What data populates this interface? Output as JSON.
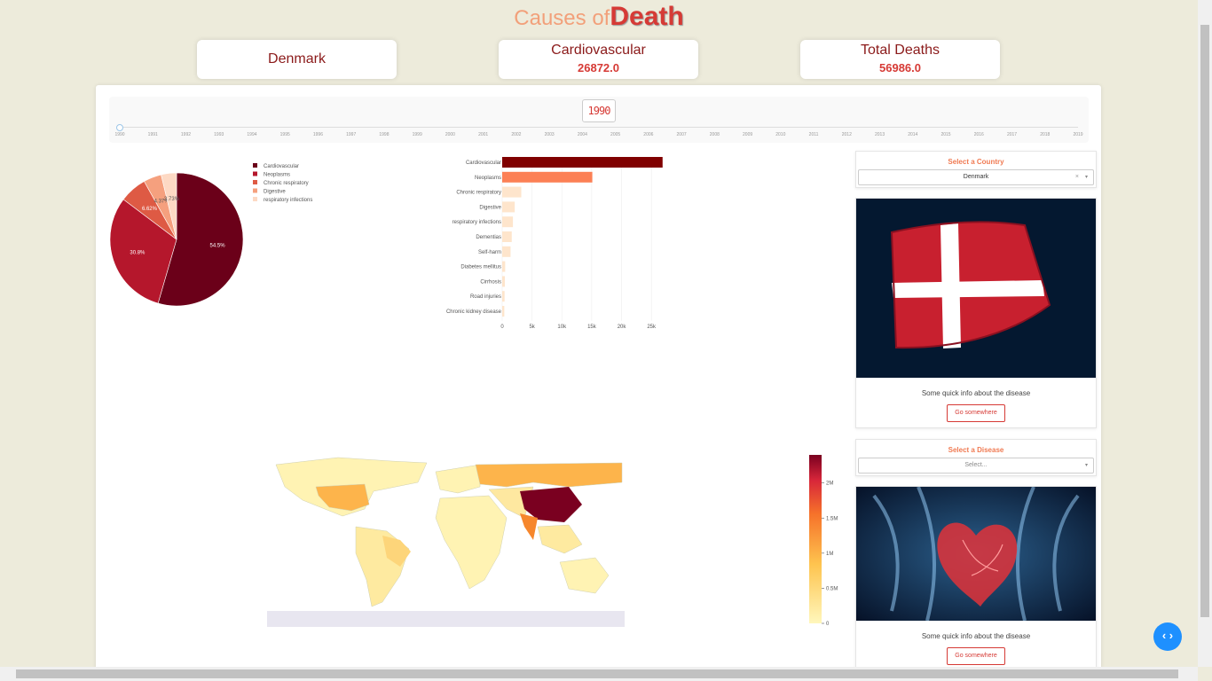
{
  "title": {
    "part1": "Causes of",
    "part2": "Death"
  },
  "cards": {
    "country": "Denmark",
    "disease_label": "Cardiovascular",
    "disease_value": "26872.0",
    "total_label": "Total Deaths",
    "total_value": "56986.0"
  },
  "slider": {
    "current": "1990",
    "years": [
      "1990",
      "1991",
      "1992",
      "1993",
      "1994",
      "1995",
      "1996",
      "1997",
      "1998",
      "1999",
      "2000",
      "2001",
      "2002",
      "2003",
      "2004",
      "2005",
      "2006",
      "2007",
      "2008",
      "2009",
      "2010",
      "2011",
      "2012",
      "2013",
      "2014",
      "2015",
      "2016",
      "2017",
      "2018",
      "2019"
    ]
  },
  "country_select": {
    "label": "Select a Country",
    "value": "Denmark",
    "clear": "×",
    "arrow": "▾"
  },
  "disease_select": {
    "label": "Select a Disease",
    "placeholder": "Select...",
    "arrow": "▾"
  },
  "flag_card": {
    "info": "Some quick info about the disease",
    "button": "Go somewhere"
  },
  "disease_card": {
    "info": "Some quick info about the disease",
    "button": "Go somewhere"
  },
  "fab": {
    "icon": "code-icon",
    "glyph": "‹ ›"
  },
  "chart_data": [
    {
      "type": "pie",
      "labels": [
        "Cardiovascular",
        "Neoplasms",
        "Chronic respiratory",
        "Digestive",
        "respiratory infections"
      ],
      "values": [
        54.5,
        30.8,
        6.62,
        4.37,
        3.73
      ],
      "slice_labels": [
        "54.5%",
        "30.8%",
        "6.62%",
        "4.37%",
        "3.73%"
      ],
      "colors": [
        "#6b0019",
        "#b5172c",
        "#de5a44",
        "#f5a07e",
        "#fdd9c4"
      ],
      "legend": "right"
    },
    {
      "type": "bar",
      "orientation": "horizontal",
      "categories": [
        "Cardiovascular",
        "Neoplasms",
        "Chronic respiratory",
        "Digestive",
        "respiratory infections",
        "Dementias",
        "Self-harm",
        "Diabetes mellitus",
        "Cirrhosis",
        "Road injuries",
        "Chronic kidney disease"
      ],
      "values": [
        26872,
        15100,
        3200,
        2100,
        1800,
        1600,
        1400,
        500,
        450,
        400,
        350
      ],
      "colors": [
        "#800000",
        "#fc8055",
        "#fee5cc",
        "#fee5cc",
        "#fee5cc",
        "#fee5cc",
        "#fee5cc",
        "#fee5cc",
        "#fee5cc",
        "#fee5cc",
        "#fee5cc"
      ],
      "xticks": [
        "0",
        "5k",
        "10k",
        "15k",
        "20k",
        "25k"
      ],
      "xlim": [
        0,
        27500
      ],
      "grid": true
    },
    {
      "type": "heatmap",
      "subtype": "choropleth",
      "colorbar_ticks": [
        "0",
        "0.5M",
        "1M",
        "1.5M",
        "2M"
      ],
      "colorbar_range": [
        0,
        2400000
      ]
    }
  ]
}
